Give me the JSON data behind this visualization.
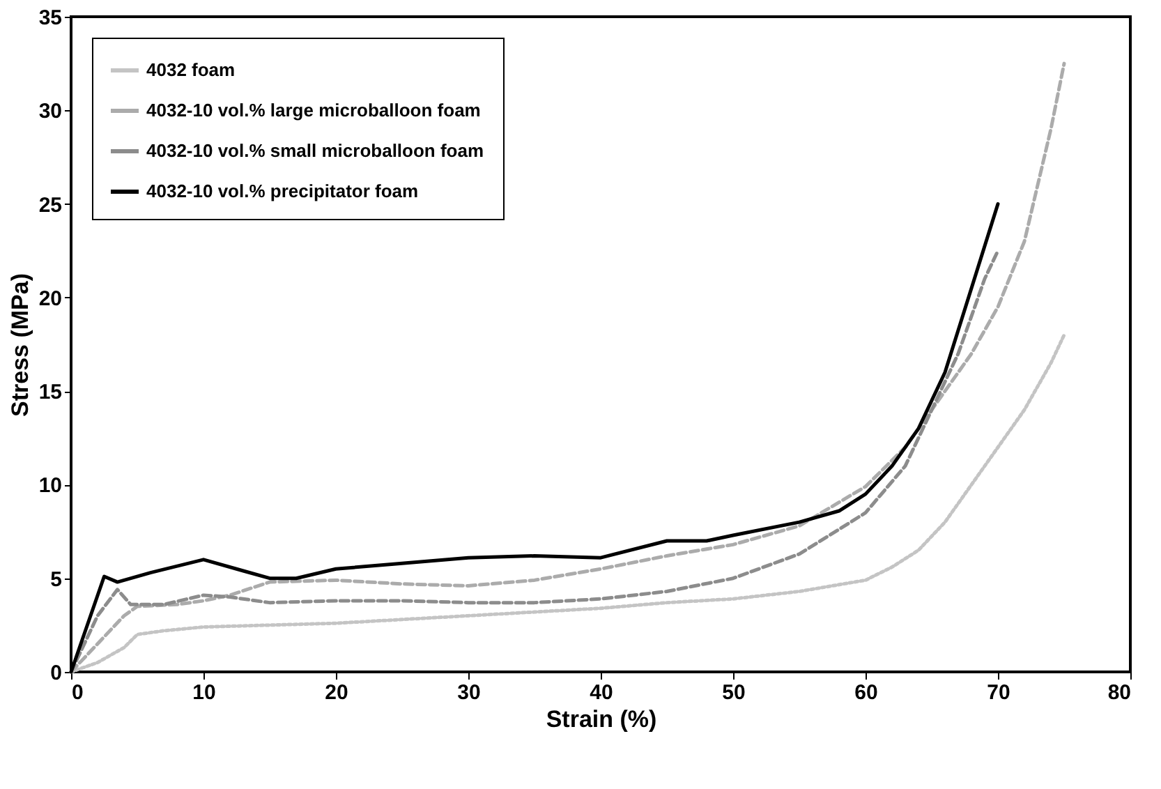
{
  "chart_data": {
    "type": "line",
    "xlabel": "Strain (%)",
    "ylabel": "Stress (MPa)",
    "xlim": [
      0,
      80
    ],
    "ylim": [
      0,
      35
    ],
    "xticks": [
      0,
      10,
      20,
      30,
      40,
      50,
      60,
      70,
      80
    ],
    "yticks": [
      0,
      5,
      10,
      15,
      20,
      25,
      30,
      35
    ],
    "grid": false,
    "legend": "top left",
    "marker": "none",
    "series": [
      {
        "name": "4032  foam",
        "color": "#c4c4c4",
        "line_style": "dotted",
        "x": [
          0,
          2,
          4,
          5,
          7,
          10,
          15,
          20,
          25,
          30,
          35,
          40,
          45,
          50,
          55,
          60,
          62,
          64,
          66,
          68,
          70,
          72,
          74,
          75
        ],
        "values": [
          0,
          0.5,
          1.3,
          2,
          2.2,
          2.4,
          2.5,
          2.6,
          2.8,
          3,
          3.2,
          3.4,
          3.7,
          3.9,
          4.3,
          4.9,
          5.6,
          6.5,
          8,
          10,
          12,
          14,
          16.5,
          18
        ]
      },
      {
        "name": "4032-10 vol.%  large microballoon foam",
        "color": "#ababab",
        "line_style": "dashed",
        "x": [
          0,
          2,
          4,
          5,
          8,
          10,
          12,
          15,
          20,
          25,
          30,
          35,
          40,
          45,
          50,
          55,
          60,
          63,
          66,
          68,
          70,
          72,
          74,
          75
        ],
        "values": [
          0,
          1.5,
          3,
          3.5,
          3.6,
          3.8,
          4.1,
          4.8,
          4.9,
          4.7,
          4.6,
          4.9,
          5.5,
          6.2,
          6.8,
          7.8,
          9.9,
          12,
          15,
          17,
          19.5,
          23,
          29,
          32.5
        ]
      },
      {
        "name": "4032-10 vol.% small microballoon foam",
        "color": "#8c8c8c",
        "line_style": "dashed",
        "x": [
          0,
          2,
          3.5,
          4.5,
          7,
          10,
          12,
          15,
          20,
          25,
          30,
          35,
          40,
          45,
          50,
          55,
          60,
          63,
          65,
          67,
          69,
          70
        ],
        "values": [
          0,
          3,
          4.4,
          3.6,
          3.6,
          4.1,
          4,
          3.7,
          3.8,
          3.8,
          3.7,
          3.7,
          3.9,
          4.3,
          5,
          6.3,
          8.5,
          11,
          14,
          17,
          21,
          22.5
        ]
      },
      {
        "name": "4032-10 vol.%  precipitator foam",
        "color": "#000000",
        "line_style": "solid",
        "x": [
          0,
          2.5,
          3.5,
          6,
          10,
          13,
          15,
          17,
          20,
          25,
          30,
          35,
          40,
          45,
          48,
          50,
          55,
          58,
          60,
          62,
          64,
          66,
          68,
          70
        ],
        "values": [
          0,
          5.1,
          4.8,
          5.3,
          6,
          5.4,
          5,
          5,
          5.5,
          5.8,
          6.1,
          6.2,
          6.1,
          7,
          7,
          7.3,
          8,
          8.6,
          9.5,
          11,
          13,
          16,
          20.5,
          25
        ]
      }
    ]
  }
}
